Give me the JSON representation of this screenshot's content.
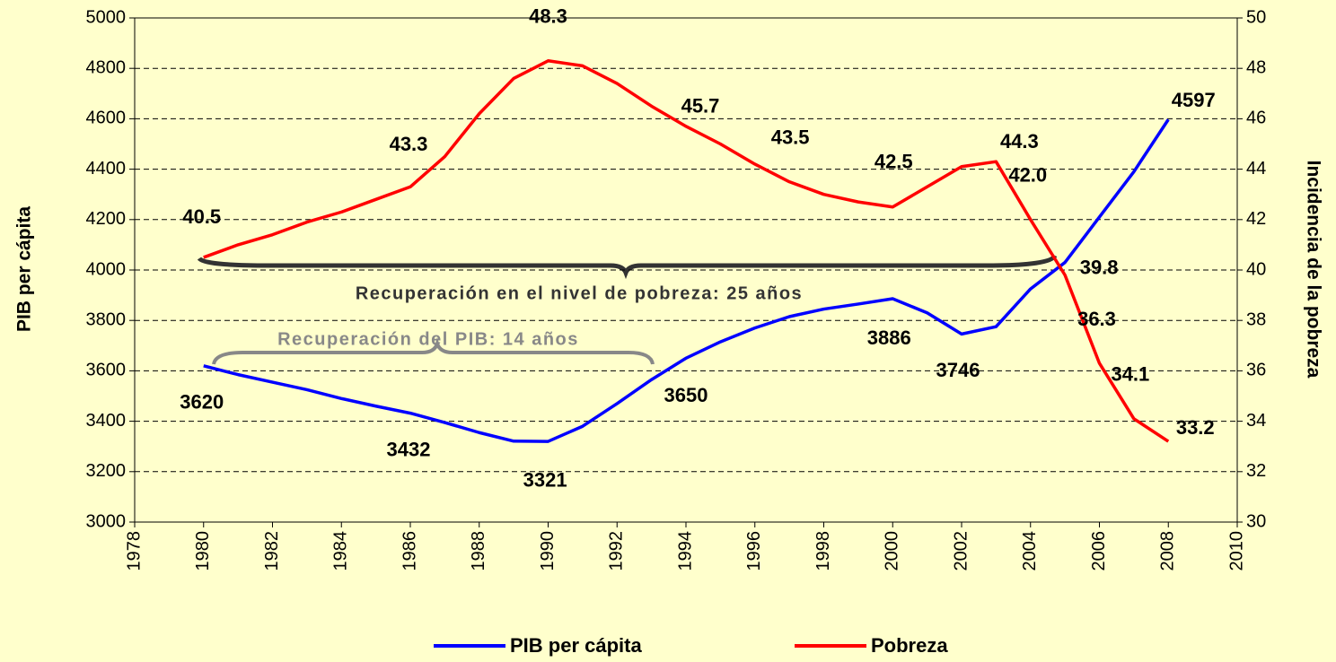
{
  "chart_data": {
    "type": "line",
    "x": [
      1980,
      1981,
      1982,
      1983,
      1984,
      1985,
      1986,
      1987,
      1988,
      1989,
      1990,
      1991,
      1992,
      1993,
      1994,
      1995,
      1996,
      1997,
      1998,
      1999,
      2000,
      2001,
      2002,
      2003,
      2004,
      2005,
      2006,
      2007,
      2008
    ],
    "series": [
      {
        "name": "PIB per cápita",
        "color": "#0000ff",
        "axis": "y",
        "values": [
          3620,
          3585,
          3555,
          3525,
          3490,
          3460,
          3432,
          3395,
          3355,
          3321,
          3320,
          3380,
          3470,
          3565,
          3650,
          3715,
          3770,
          3815,
          3845,
          3865,
          3886,
          3830,
          3746,
          3775,
          3925,
          4030,
          4210,
          4390,
          4597
        ],
        "value_labels": [
          "3620",
          null,
          null,
          null,
          null,
          null,
          "3432",
          null,
          null,
          "3321",
          null,
          null,
          null,
          null,
          "3650",
          null,
          null,
          null,
          null,
          null,
          "3886",
          null,
          "3746",
          null,
          null,
          null,
          null,
          null,
          "4597"
        ]
      },
      {
        "name": "Pobreza",
        "color": "#ff0000",
        "axis": "y2",
        "values": [
          40.5,
          41.0,
          41.4,
          41.9,
          42.3,
          42.8,
          43.3,
          44.5,
          46.2,
          47.6,
          48.3,
          48.1,
          47.4,
          46.5,
          45.7,
          45.0,
          44.2,
          43.5,
          43.0,
          42.7,
          42.5,
          43.3,
          44.1,
          44.3,
          42.0,
          39.8,
          36.3,
          34.1,
          33.2
        ],
        "value_labels": [
          "40.5",
          null,
          null,
          null,
          null,
          null,
          "43.3",
          null,
          null,
          null,
          "48.3",
          null,
          null,
          null,
          "45.7",
          null,
          null,
          "43.5",
          null,
          null,
          "42.5",
          null,
          null,
          "44.3",
          "42.0",
          "39.8",
          "36.3",
          "34.1",
          "33.2"
        ]
      }
    ],
    "xlim": [
      1978,
      2010
    ],
    "xticks": [
      1978,
      1980,
      1982,
      1984,
      1986,
      1988,
      1990,
      1992,
      1994,
      1996,
      1998,
      2000,
      2002,
      2004,
      2006,
      2008,
      2010
    ],
    "ylim": [
      3000,
      5000
    ],
    "yticks": [
      3000,
      3200,
      3400,
      3600,
      3800,
      4000,
      4200,
      4400,
      4600,
      4800,
      5000
    ],
    "y2lim": [
      30,
      50
    ],
    "y2ticks": [
      30,
      32,
      34,
      36,
      38,
      40,
      42,
      44,
      46,
      48,
      50
    ],
    "ylabel": "PIB per cápita",
    "y2label": "Incidencia de la pobreza",
    "annotations": [
      "Recuperación en el nivel de pobreza: 25 años",
      "Recuperación del PIB: 14 años"
    ],
    "grid": true,
    "legend": "bottom"
  }
}
